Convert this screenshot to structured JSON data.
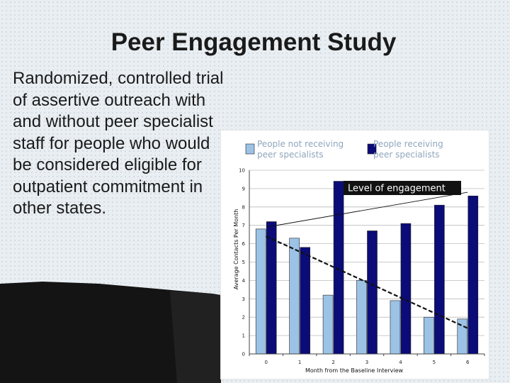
{
  "slide": {
    "title": "Peer Engagement Study",
    "body": "Randomized, controlled trial of assertive outreach with and without peer specialist staff for people who would be considered eligible for outpatient commitment in other states."
  },
  "chart_data": {
    "type": "bar",
    "x": [
      0,
      1,
      2,
      3,
      4,
      5,
      6
    ],
    "xlabel": "Month from the Baseline Interview",
    "ylabel": "Average Contacts Per Month",
    "ylim": [
      0,
      10
    ],
    "yticks": [
      0,
      1,
      2,
      3,
      4,
      5,
      6,
      7,
      8,
      9,
      10
    ],
    "legend_position": "top",
    "series": [
      {
        "name": "People not receiving peer specialists",
        "legend_lines": [
          "People not receiving",
          "peer specialists"
        ],
        "color": "#9cc3e6",
        "values": [
          6.8,
          6.3,
          3.2,
          4.0,
          2.9,
          2.0,
          1.9
        ]
      },
      {
        "name": "People receiving peer specialists",
        "legend_lines": [
          "People receiving",
          "peer specialists"
        ],
        "color": "#0b0c78",
        "values": [
          7.2,
          5.8,
          9.4,
          6.7,
          7.1,
          8.1,
          8.6
        ]
      }
    ],
    "trendlines": [
      {
        "series": 0,
        "style": "dashed",
        "from": [
          0,
          6.4
        ],
        "to": [
          6,
          1.4
        ]
      },
      {
        "series": 1,
        "style": "solid",
        "from": [
          0,
          6.9
        ],
        "to": [
          6,
          8.8
        ]
      }
    ],
    "annotation": "Level of engagement"
  }
}
